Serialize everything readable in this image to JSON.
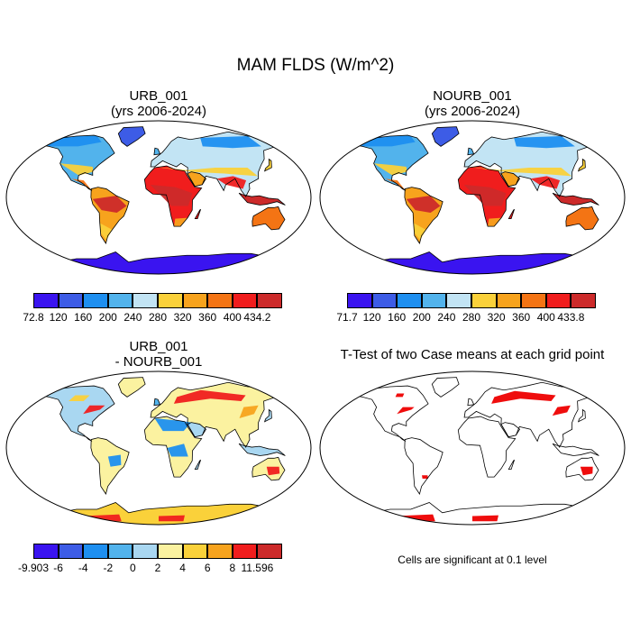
{
  "title": "MAM FLDS (W/m^2)",
  "panels": {
    "urb": {
      "title_line1": "URB_001",
      "title_line2": "(yrs 2006-2024)",
      "colorbar": {
        "colors": [
          "#3a14f0",
          "#3d5ce6",
          "#1e8ff0",
          "#52b3ec",
          "#c2e4f4",
          "#fad13a",
          "#f7a31d",
          "#f47414",
          "#f01d1d",
          "#cc2a2a"
        ],
        "labels": [
          "72.8",
          "120",
          "160",
          "200",
          "240",
          "280",
          "320",
          "360",
          "400",
          "434.2"
        ]
      }
    },
    "nourb": {
      "title_line1": "NOURB_001",
      "title_line2": "(yrs 2006-2024)",
      "colorbar": {
        "colors": [
          "#3a14f0",
          "#3d5ce6",
          "#1e8ff0",
          "#52b3ec",
          "#c2e4f4",
          "#fad13a",
          "#f7a31d",
          "#f47414",
          "#f01d1d",
          "#cc2a2a"
        ],
        "labels": [
          "71.7",
          "120",
          "160",
          "200",
          "240",
          "280",
          "320",
          "360",
          "400",
          "433.8"
        ]
      }
    },
    "diff": {
      "title_line1": "URB_001",
      "title_line2": "- NOURB_001",
      "colorbar": {
        "colors": [
          "#3a14f0",
          "#3d5ce6",
          "#1e8ff0",
          "#52b3ec",
          "#a9d7f1",
          "#fbf2a0",
          "#fad13a",
          "#f7a31d",
          "#f01d1d",
          "#cc2a2a"
        ],
        "labels": [
          "-9.903",
          "-6",
          "-4",
          "-2",
          "0",
          "2",
          "4",
          "6",
          "8",
          "11.596"
        ]
      }
    },
    "ttest": {
      "title_line1": "T-Test of two Case means at each grid point",
      "note": "Cells are significant at 0.1 level",
      "significant_color": "#ee0000"
    }
  }
}
